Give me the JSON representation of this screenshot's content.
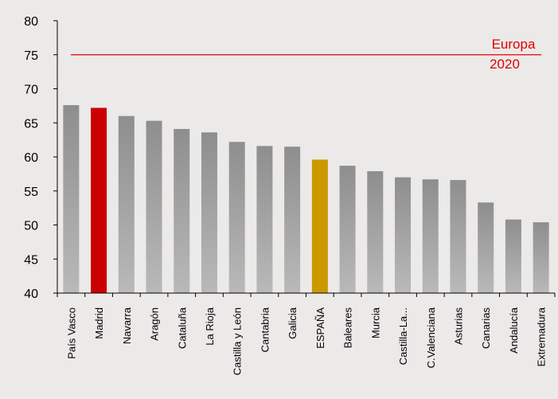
{
  "colors": {
    "background": "#ece9e9",
    "bar_default": "#9a9a9a",
    "bar_highlight_madrid": "#cc0000",
    "bar_highlight_espana": "#cc9900",
    "target_line": "#e00000",
    "axis": "#000000"
  },
  "chart_data": {
    "type": "bar",
    "title": "",
    "xlabel": "",
    "ylabel": "",
    "ylim": [
      40,
      80
    ],
    "yticks": [
      40,
      45,
      50,
      55,
      60,
      65,
      70,
      75,
      80
    ],
    "grid": false,
    "legend": "none",
    "categories": [
      "País Vasco",
      "Madrid",
      "Navarra",
      "Aragón",
      "Cataluña",
      "La Rioja",
      "Castilla y León",
      "Cantabria",
      "Galicia",
      "ESPAÑA",
      "Baleares",
      "Murcia",
      "Castilla-La...",
      "C.Valenciana",
      "Asturias",
      "Canarias",
      "Andalucía",
      "Extremadura"
    ],
    "values": [
      67.6,
      67.2,
      66.0,
      65.3,
      64.1,
      63.6,
      62.2,
      61.6,
      61.5,
      59.6,
      58.7,
      57.9,
      57.0,
      56.7,
      56.6,
      53.3,
      50.8,
      50.4
    ],
    "highlight": {
      "Madrid": "bar_highlight_madrid",
      "ESPAÑA": "bar_highlight_espana"
    },
    "reference_line": {
      "value": 75,
      "label_line1": "Europa",
      "label_line2": "2020"
    }
  }
}
